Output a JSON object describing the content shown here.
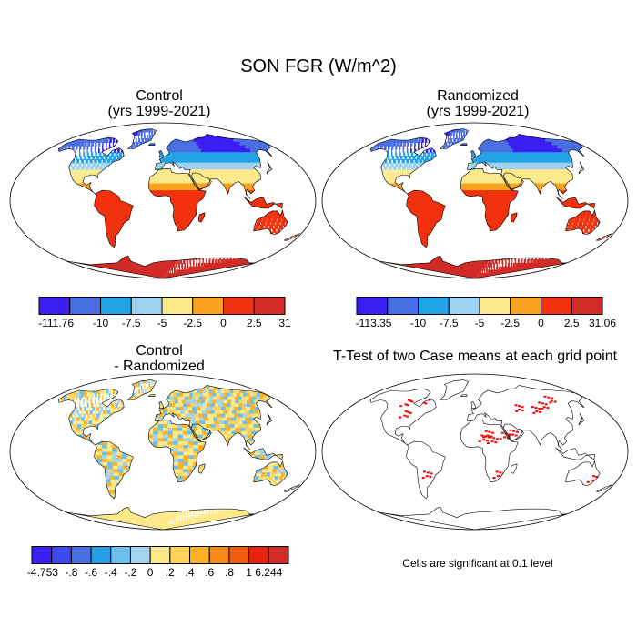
{
  "figure": {
    "title": "SON FGR (W/m^2)"
  },
  "panels": [
    {
      "id": "control",
      "title_line1": "Control",
      "title_line2": "(yrs 1999-2021)",
      "colorbar": {
        "colors": [
          "#3b1ff2",
          "#4a6fe3",
          "#22a3e6",
          "#9ed1ef",
          "#fce98a",
          "#fba31f",
          "#f2310f",
          "#d02b26"
        ],
        "labels": [
          "-111.76",
          "-10",
          "-7.5",
          "-5",
          "-2.5",
          "0",
          "2.5",
          "31"
        ]
      }
    },
    {
      "id": "randomized",
      "title_line1": "Randomized",
      "title_line2": "(yrs 1999-2021)",
      "colorbar": {
        "colors": [
          "#3b1ff2",
          "#4a6fe3",
          "#22a3e6",
          "#9ed1ef",
          "#fce98a",
          "#fba31f",
          "#f2310f",
          "#d02b26"
        ],
        "labels": [
          "-113.35",
          "-10",
          "-7.5",
          "-5",
          "-2.5",
          "0",
          "2.5",
          "31.06"
        ]
      }
    },
    {
      "id": "difference",
      "title_line1": "Control",
      "title_line2": "- Randomized",
      "colorbar": {
        "colors": [
          "#3b1ff2",
          "#3f49f0",
          "#4a6fe3",
          "#229fe6",
          "#6cc0ec",
          "#a4d4ee",
          "#fde98a",
          "#fdd35a",
          "#fbb22a",
          "#f88a17",
          "#f25a11",
          "#e8220e",
          "#d02b26"
        ],
        "labels": [
          "-4.753",
          "-.8",
          "-.6",
          "-.4",
          "-.2",
          "0",
          ".2",
          ".4",
          ".6",
          ".8",
          "1",
          "6.244"
        ]
      }
    },
    {
      "id": "ttest",
      "title_line1": "T-Test of two Case means at each grid point",
      "note": "Cells are significant at 0.1 level"
    }
  ]
}
